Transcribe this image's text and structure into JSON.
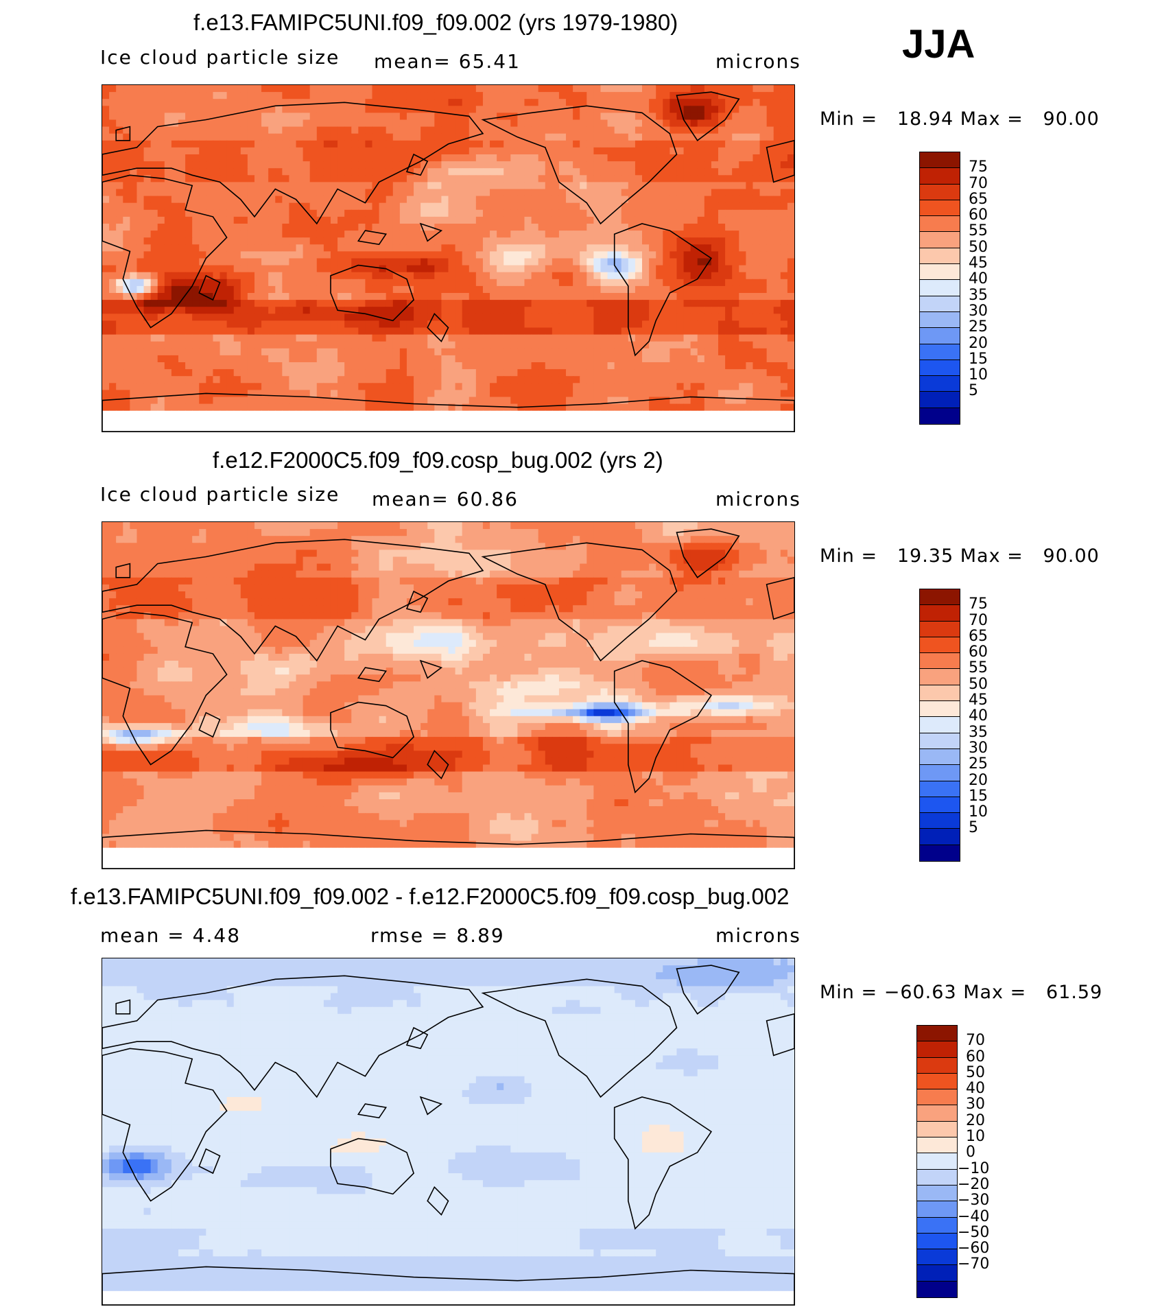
{
  "season_label": "JJA",
  "colors": {
    "abs_palette": [
      "#00008b",
      "#0020b8",
      "#0a3ad8",
      "#1d56f0",
      "#3a72f5",
      "#6e98f5",
      "#9ab8f5",
      "#c2d4f8",
      "#ddeafb",
      "#fde8d8",
      "#fcc8ac",
      "#f9a27e",
      "#f77c4e",
      "#ef5420",
      "#db3a10",
      "#c02204",
      "#8c1500"
    ],
    "diff_palette": [
      "#00008b",
      "#0020b8",
      "#0a3ad8",
      "#1d56f0",
      "#3a72f5",
      "#6e98f5",
      "#9ab8f5",
      "#c2d4f8",
      "#ddeafb",
      "#fde8d8",
      "#fcc8ac",
      "#f9a27e",
      "#f77c4e",
      "#ef5420",
      "#db3a10",
      "#c02204",
      "#8c1500"
    ],
    "coast": "#000000"
  },
  "panels": [
    {
      "title": "f.e13.FAMIPC5UNI.f09_f09.002 (yrs 1979-1980)",
      "variable": "Ice cloud particle size",
      "stat": "mean=   65.41",
      "units": "microns",
      "minmax": "Min =   18.94 Max =   90.00",
      "map_type": "model1",
      "colorbar_labels": [
        "75",
        "70",
        "65",
        "60",
        "55",
        "50",
        "45",
        "40",
        "35",
        "30",
        "25",
        "20",
        "15",
        "10",
        "5"
      ]
    },
    {
      "title": "f.e12.F2000C5.f09_f09.cosp_bug.002 (yrs 2)",
      "variable": "Ice cloud particle size",
      "stat": "mean=   60.86",
      "units": "microns",
      "minmax": "Min =   19.35 Max =   90.00",
      "map_type": "model2",
      "colorbar_labels": [
        "75",
        "70",
        "65",
        "60",
        "55",
        "50",
        "45",
        "40",
        "35",
        "30",
        "25",
        "20",
        "15",
        "10",
        "5"
      ]
    },
    {
      "title": "f.e13.FAMIPC5UNI.f09_f09.002 - f.e12.F2000C5.f09_f09.cosp_bug.002",
      "variable": "mean =     4.48",
      "stat": "rmse =     8.89",
      "units": "microns",
      "minmax": "Min = −60.63 Max =   61.59",
      "map_type": "diff",
      "colorbar_labels": [
        "70",
        "60",
        "50",
        "40",
        "30",
        "20",
        "10",
        "0",
        "−10",
        "−20",
        "−30",
        "−40",
        "−50",
        "−60",
        "−70"
      ]
    }
  ]
}
